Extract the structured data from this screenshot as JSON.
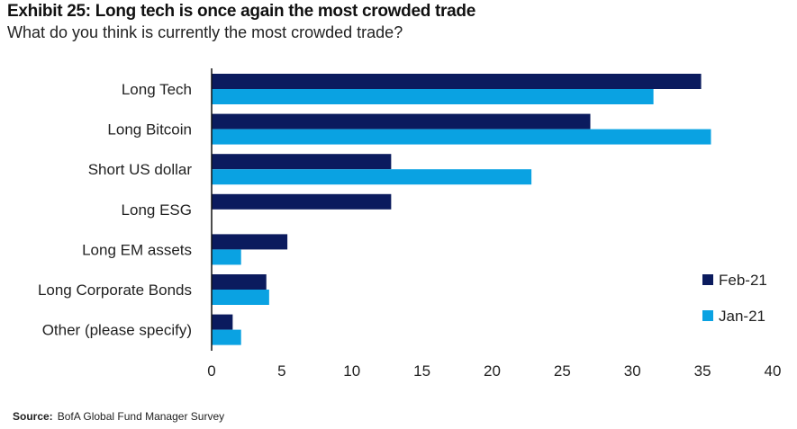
{
  "chart_data": {
    "type": "bar",
    "orientation": "horizontal",
    "title": "Exhibit 25: Long tech is once again the most crowded trade",
    "subtitle": "What do you think is currently the most crowded trade?",
    "categories": [
      "Long Tech",
      "Long Bitcoin",
      "Short US dollar",
      "Long ESG",
      "Long EM assets",
      "Long Corporate Bonds",
      "Other (please specify)"
    ],
    "series": [
      {
        "name": "Feb-21",
        "color": "#0b1b5e",
        "values": [
          34.9,
          27.0,
          12.8,
          12.8,
          5.4,
          3.9,
          1.5
        ]
      },
      {
        "name": "Jan-21",
        "color": "#0aa2e2",
        "values": [
          31.5,
          35.6,
          22.8,
          null,
          2.1,
          4.1,
          2.1
        ]
      }
    ],
    "xlim": [
      0,
      40
    ],
    "xticks": [
      "0",
      "5",
      "10",
      "15",
      "20",
      "25",
      "30",
      "35",
      "40"
    ],
    "grid": false,
    "legend_position": "right"
  },
  "source": {
    "label": "Source:",
    "text": "BofA Global Fund Manager Survey"
  }
}
